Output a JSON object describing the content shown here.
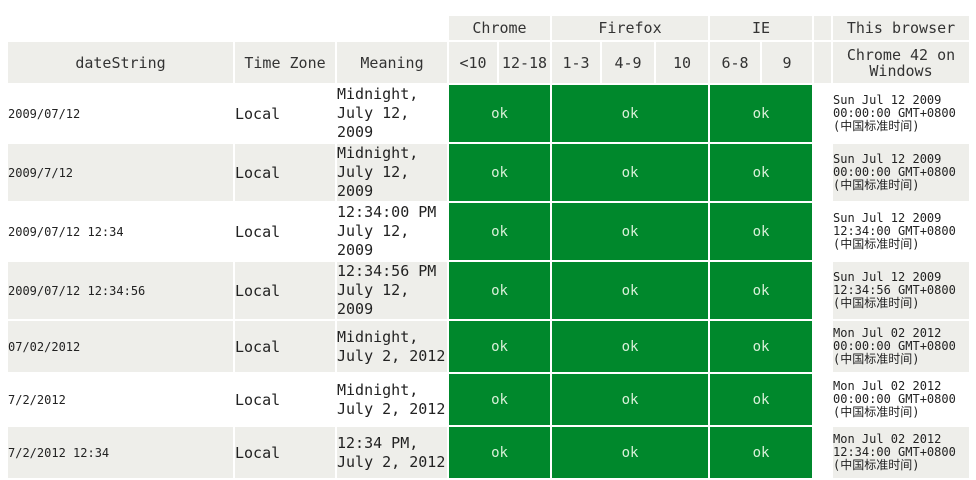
{
  "header": {
    "groups": {
      "chrome": "Chrome",
      "firefox": "Firefox",
      "ie": "IE",
      "this_browser": "This browser"
    },
    "columns": {
      "date_string": "dateString",
      "time_zone": "Time Zone",
      "meaning": "Meaning",
      "chrome_lt10": "<10",
      "chrome_12_18": "12-18",
      "firefox_1_3": "1-3",
      "firefox_4_9": "4-9",
      "firefox_10": "10",
      "ie_6_8": "6-8",
      "ie_9": "9",
      "this_browser_version": "Chrome 42 on Windows"
    }
  },
  "rows": [
    {
      "date_string": "2009/07/12",
      "time_zone": "Local",
      "meaning": "Midnight,\nJuly 12, 2009",
      "chrome": "ok",
      "firefox": "ok",
      "ie": "ok",
      "result": "Sun Jul 12 2009\n00:00:00 GMT+0800\n(中国标准时间)"
    },
    {
      "date_string": "2009/7/12",
      "time_zone": "Local",
      "meaning": "Midnight,\nJuly 12, 2009",
      "chrome": "ok",
      "firefox": "ok",
      "ie": "ok",
      "result": "Sun Jul 12 2009\n00:00:00 GMT+0800\n(中国标准时间)"
    },
    {
      "date_string": "2009/07/12 12:34",
      "time_zone": "Local",
      "meaning": "12:34:00 PM\nJuly 12, 2009",
      "chrome": "ok",
      "firefox": "ok",
      "ie": "ok",
      "result": "Sun Jul 12 2009\n12:34:00 GMT+0800\n(中国标准时间)"
    },
    {
      "date_string": "2009/07/12 12:34:56",
      "time_zone": "Local",
      "meaning": "12:34:56 PM\nJuly 12, 2009",
      "chrome": "ok",
      "firefox": "ok",
      "ie": "ok",
      "result": "Sun Jul 12 2009\n12:34:56 GMT+0800\n(中国标准时间)"
    },
    {
      "date_string": "07/02/2012",
      "time_zone": "Local",
      "meaning": "Midnight,\nJuly 2, 2012",
      "chrome": "ok",
      "firefox": "ok",
      "ie": "ok",
      "result": "Mon Jul 02 2012\n00:00:00 GMT+0800\n(中国标准时间)"
    },
    {
      "date_string": "7/2/2012",
      "time_zone": "Local",
      "meaning": "Midnight,\nJuly 2, 2012",
      "chrome": "ok",
      "firefox": "ok",
      "ie": "ok",
      "result": "Mon Jul 02 2012\n00:00:00 GMT+0800\n(中国标准时间)"
    },
    {
      "date_string": "7/2/2012 12:34",
      "time_zone": "Local",
      "meaning": "12:34 PM,\nJuly 2, 2012",
      "chrome": "ok",
      "firefox": "ok",
      "ie": "ok",
      "result": "Mon Jul 02 2012\n12:34:00 GMT+0800\n(中国标准时间)"
    }
  ],
  "colors": {
    "ok_cell": "#00882c",
    "header_bg": "#eeeeea",
    "alt_row_bg": "#eeeeea"
  }
}
